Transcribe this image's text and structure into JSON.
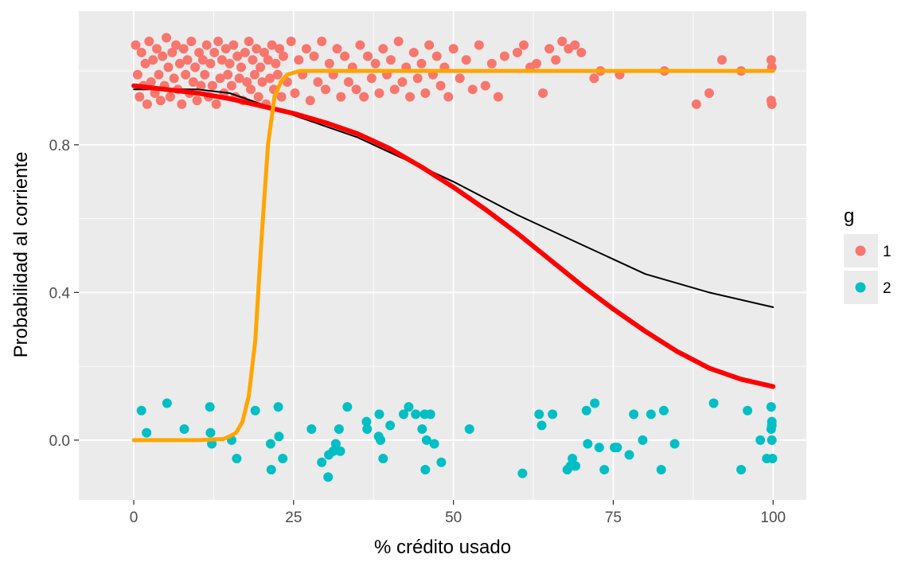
{
  "chart_data": {
    "type": "scatter",
    "xlabel": "% crédito usado",
    "ylabel": "Probabilidad al corriente",
    "xlim": [
      -8.6,
      105.2
    ],
    "ylim": [
      -0.162,
      1.162
    ],
    "x_ticks": [
      0,
      25,
      50,
      75,
      100
    ],
    "x_tick_labels": [
      "0",
      "25",
      "50",
      "75",
      "100"
    ],
    "y_ticks": [
      0.0,
      0.4,
      0.8
    ],
    "y_tick_labels": [
      "0.0",
      "0.4",
      "0.8"
    ],
    "grid": true,
    "legend": {
      "title": "g",
      "position": "right",
      "entries": [
        {
          "label": "1",
          "color": "#F8766D"
        },
        {
          "label": "2",
          "color": "#00BFC4"
        }
      ]
    },
    "series": [
      {
        "name": "1",
        "kind": "points",
        "color": "#F8766D",
        "points": [
          [
            0.3,
            1.07
          ],
          [
            0.6,
            0.99
          ],
          [
            0.9,
            0.93
          ],
          [
            1.2,
            1.05
          ],
          [
            1.5,
            0.96
          ],
          [
            1.8,
            1.02
          ],
          [
            2.1,
            0.91
          ],
          [
            2.4,
            1.08
          ],
          [
            2.7,
            0.97
          ],
          [
            3.0,
            1.03
          ],
          [
            3.3,
            0.94
          ],
          [
            3.6,
            1.06
          ],
          [
            3.9,
            0.99
          ],
          [
            4.2,
            0.92
          ],
          [
            4.5,
            1.04
          ],
          [
            4.8,
            0.96
          ],
          [
            5.1,
            1.09
          ],
          [
            5.4,
            1.01
          ],
          [
            5.7,
            0.93
          ],
          [
            6.0,
            1.05
          ],
          [
            6.3,
            0.98
          ],
          [
            6.6,
            1.07
          ],
          [
            6.9,
            0.95
          ],
          [
            7.2,
            1.02
          ],
          [
            7.5,
            0.91
          ],
          [
            7.8,
            1.06
          ],
          [
            8.1,
            0.99
          ],
          [
            8.4,
            1.03
          ],
          [
            8.7,
            0.94
          ],
          [
            9.0,
            1.08
          ],
          [
            9.3,
            0.97
          ],
          [
            9.6,
            1.01
          ],
          [
            9.9,
            0.92
          ],
          [
            10.2,
            1.05
          ],
          [
            10.5,
            0.96
          ],
          [
            10.8,
            1.03
          ],
          [
            11.1,
            0.99
          ],
          [
            11.4,
            1.07
          ],
          [
            11.7,
            0.93
          ],
          [
            12.0,
            1.02
          ],
          [
            12.3,
            0.96
          ],
          [
            12.6,
            1.05
          ],
          [
            12.9,
            0.91
          ],
          [
            13.2,
            1.08
          ],
          [
            13.5,
            0.98
          ],
          [
            13.8,
            1.03
          ],
          [
            14.1,
            0.94
          ],
          [
            14.4,
            1.06
          ],
          [
            14.7,
            0.99
          ],
          [
            15.0,
            1.02
          ],
          [
            15.3,
            0.96
          ],
          [
            15.6,
            1.07
          ],
          [
            15.9,
            0.93
          ],
          [
            16.2,
            1.04
          ],
          [
            16.5,
            0.98
          ],
          [
            16.8,
            1.01
          ],
          [
            17.1,
            0.92
          ],
          [
            17.4,
            1.05
          ],
          [
            17.7,
            0.97
          ],
          [
            18.0,
            1.08
          ],
          [
            18.3,
            0.95
          ],
          [
            18.6,
            1.03
          ],
          [
            18.9,
            0.99
          ],
          [
            19.2,
            1.06
          ],
          [
            19.5,
            0.93
          ],
          [
            19.8,
            1.01
          ],
          [
            20.1,
            0.97
          ],
          [
            20.4,
            1.05
          ],
          [
            20.7,
            0.91
          ],
          [
            21.0,
            1.03
          ],
          [
            21.3,
            0.98
          ],
          [
            21.6,
            1.07
          ],
          [
            21.9,
            0.95
          ],
          [
            22.2,
            1.02
          ],
          [
            22.5,
            0.99
          ],
          [
            22.8,
            1.06
          ],
          [
            23.1,
            0.93
          ],
          [
            23.4,
            1.04
          ],
          [
            24.0,
            0.97
          ],
          [
            24.6,
            1.08
          ],
          [
            25.2,
            0.94
          ],
          [
            25.8,
            1.03
          ],
          [
            26.4,
            0.99
          ],
          [
            27.0,
            1.06
          ],
          [
            27.6,
            0.92
          ],
          [
            28.2,
            1.04
          ],
          [
            28.8,
            0.97
          ],
          [
            29.4,
            1.08
          ],
          [
            30.0,
            0.95
          ],
          [
            30.6,
            1.02
          ],
          [
            31.2,
            0.99
          ],
          [
            31.8,
            1.06
          ],
          [
            32.4,
            0.93
          ],
          [
            33.0,
            1.04
          ],
          [
            33.6,
            0.97
          ],
          [
            34.2,
            1.01
          ],
          [
            34.8,
            0.95
          ],
          [
            35.4,
            1.07
          ],
          [
            36.0,
            0.93
          ],
          [
            36.6,
            1.04
          ],
          [
            37.2,
            0.98
          ],
          [
            37.8,
            1.02
          ],
          [
            38.4,
            0.94
          ],
          [
            39.0,
            1.06
          ],
          [
            39.6,
            0.99
          ],
          [
            40.2,
            1.03
          ],
          [
            40.8,
            0.95
          ],
          [
            41.4,
            1.08
          ],
          [
            42.0,
            0.97
          ],
          [
            42.6,
            1.01
          ],
          [
            43.2,
            0.93
          ],
          [
            43.8,
            1.05
          ],
          [
            44.4,
            0.98
          ],
          [
            45.0,
            1.02
          ],
          [
            45.6,
            0.94
          ],
          [
            46.2,
            1.07
          ],
          [
            46.8,
            0.99
          ],
          [
            47.4,
            1.04
          ],
          [
            48.0,
            0.96
          ],
          [
            48.6,
            1.01
          ],
          [
            49.2,
            0.93
          ],
          [
            50.0,
            1.06
          ],
          [
            51.0,
            0.98
          ],
          [
            52.0,
            1.03
          ],
          [
            53.0,
            0.95
          ],
          [
            54.0,
            1.07
          ],
          [
            55.0,
            0.96
          ],
          [
            56.0,
            1.02
          ],
          [
            57.0,
            0.93
          ],
          [
            58.0,
            1.04
          ],
          [
            60.0,
            1.05
          ],
          [
            61.0,
            1.07
          ],
          [
            62.0,
            1.01
          ],
          [
            63.0,
            1.02
          ],
          [
            64.0,
            0.94
          ],
          [
            65.0,
            1.06
          ],
          [
            66.0,
            1.03
          ],
          [
            67.0,
            1.08
          ],
          [
            68.0,
            1.06
          ],
          [
            69.0,
            1.07
          ],
          [
            70.0,
            1.05
          ],
          [
            72.0,
            0.98
          ],
          [
            73.0,
            1.0
          ],
          [
            76.0,
            0.99
          ],
          [
            83.0,
            1.0
          ],
          [
            88.0,
            0.91
          ],
          [
            90.0,
            0.94
          ],
          [
            92.0,
            1.03
          ],
          [
            95.0,
            1.0
          ],
          [
            99.7,
            1.03
          ],
          [
            99.8,
            1.01
          ],
          [
            99.7,
            0.92
          ],
          [
            99.8,
            0.91
          ]
        ]
      },
      {
        "name": "2",
        "kind": "points",
        "color": "#00BFC4",
        "points": [
          [
            1.2,
            0.08
          ],
          [
            2.0,
            0.02
          ],
          [
            5.2,
            0.1
          ],
          [
            7.9,
            0.03
          ],
          [
            11.9,
            0.09
          ],
          [
            12.0,
            0.02
          ],
          [
            12.2,
            -0.01
          ],
          [
            15.3,
            0.0
          ],
          [
            16.1,
            -0.05
          ],
          [
            19.0,
            0.08
          ],
          [
            21.4,
            -0.01
          ],
          [
            21.5,
            -0.08
          ],
          [
            22.6,
            0.09
          ],
          [
            22.7,
            0.01
          ],
          [
            23.3,
            -0.05
          ],
          [
            27.8,
            0.03
          ],
          [
            29.4,
            -0.06
          ],
          [
            30.4,
            -0.1
          ],
          [
            30.5,
            -0.04
          ],
          [
            31.2,
            -0.03
          ],
          [
            31.6,
            -0.01
          ],
          [
            32.1,
            0.03
          ],
          [
            32.3,
            -0.03
          ],
          [
            33.4,
            0.09
          ],
          [
            36.4,
            0.05
          ],
          [
            36.5,
            0.03
          ],
          [
            38.3,
            0.01
          ],
          [
            38.4,
            0.07
          ],
          [
            38.6,
            0.0
          ],
          [
            39.0,
            -0.05
          ],
          [
            40.1,
            0.04
          ],
          [
            42.2,
            0.07
          ],
          [
            43.0,
            0.09
          ],
          [
            44.1,
            0.07
          ],
          [
            45.1,
            0.03
          ],
          [
            45.5,
            0.07
          ],
          [
            45.6,
            -0.08
          ],
          [
            45.8,
            0.0
          ],
          [
            46.4,
            0.07
          ],
          [
            47.0,
            -0.01
          ],
          [
            48.1,
            -0.06
          ],
          [
            52.5,
            0.03
          ],
          [
            60.8,
            -0.09
          ],
          [
            63.4,
            0.07
          ],
          [
            63.8,
            0.04
          ],
          [
            65.5,
            0.07
          ],
          [
            67.8,
            -0.08
          ],
          [
            68.3,
            -0.07
          ],
          [
            68.6,
            -0.05
          ],
          [
            69.1,
            -0.07
          ],
          [
            70.8,
            0.08
          ],
          [
            71.0,
            -0.01
          ],
          [
            72.1,
            0.1
          ],
          [
            72.8,
            -0.02
          ],
          [
            73.6,
            -0.08
          ],
          [
            75.2,
            -0.02
          ],
          [
            75.6,
            -0.02
          ],
          [
            77.5,
            -0.04
          ],
          [
            78.2,
            0.07
          ],
          [
            79.6,
            0.0
          ],
          [
            80.9,
            0.07
          ],
          [
            82.5,
            -0.08
          ],
          [
            82.9,
            0.08
          ],
          [
            84.6,
            -0.01
          ],
          [
            90.7,
            0.1
          ],
          [
            95.0,
            -0.08
          ],
          [
            96.0,
            0.08
          ],
          [
            98.0,
            0.0
          ],
          [
            99.0,
            -0.05
          ],
          [
            99.7,
            0.09
          ],
          [
            99.8,
            0.05
          ],
          [
            99.8,
            0.04
          ],
          [
            99.7,
            0.03
          ],
          [
            99.8,
            0.0
          ],
          [
            99.9,
            -0.05
          ]
        ]
      },
      {
        "name": "",
        "kind": "line",
        "color": "#000000",
        "x": [
          0,
          5,
          10,
          15,
          20,
          25,
          30,
          35,
          40,
          45,
          50,
          60,
          70,
          80,
          90,
          100
        ],
        "values": [
          0.95,
          0.95,
          0.95,
          0.94,
          0.91,
          0.88,
          0.85,
          0.82,
          0.78,
          0.74,
          0.7,
          0.61,
          0.53,
          0.45,
          0.4,
          0.36
        ]
      },
      {
        "name": "",
        "kind": "line",
        "color": "#FF0000",
        "x": [
          0,
          5,
          10,
          15,
          20,
          25,
          30,
          35,
          40,
          45,
          50,
          55,
          60,
          65,
          70,
          75,
          80,
          85,
          90,
          95,
          100
        ],
        "values": [
          0.96,
          0.95,
          0.94,
          0.925,
          0.905,
          0.885,
          0.86,
          0.83,
          0.79,
          0.74,
          0.685,
          0.625,
          0.56,
          0.49,
          0.42,
          0.355,
          0.295,
          0.24,
          0.195,
          0.165,
          0.145
        ]
      },
      {
        "name": "",
        "kind": "line",
        "color": "#FFA500",
        "x": [
          0,
          5,
          10,
          14,
          15,
          16,
          17,
          18,
          19,
          20,
          21,
          22,
          23,
          24,
          25,
          26,
          30,
          40,
          60,
          80,
          100
        ],
        "values": [
          0.0,
          0.0,
          0.0,
          0.003,
          0.01,
          0.02,
          0.05,
          0.12,
          0.27,
          0.55,
          0.8,
          0.93,
          0.97,
          0.99,
          0.995,
          1.0,
          1.0,
          1.0,
          1.0,
          1.0,
          1.0
        ]
      }
    ]
  }
}
